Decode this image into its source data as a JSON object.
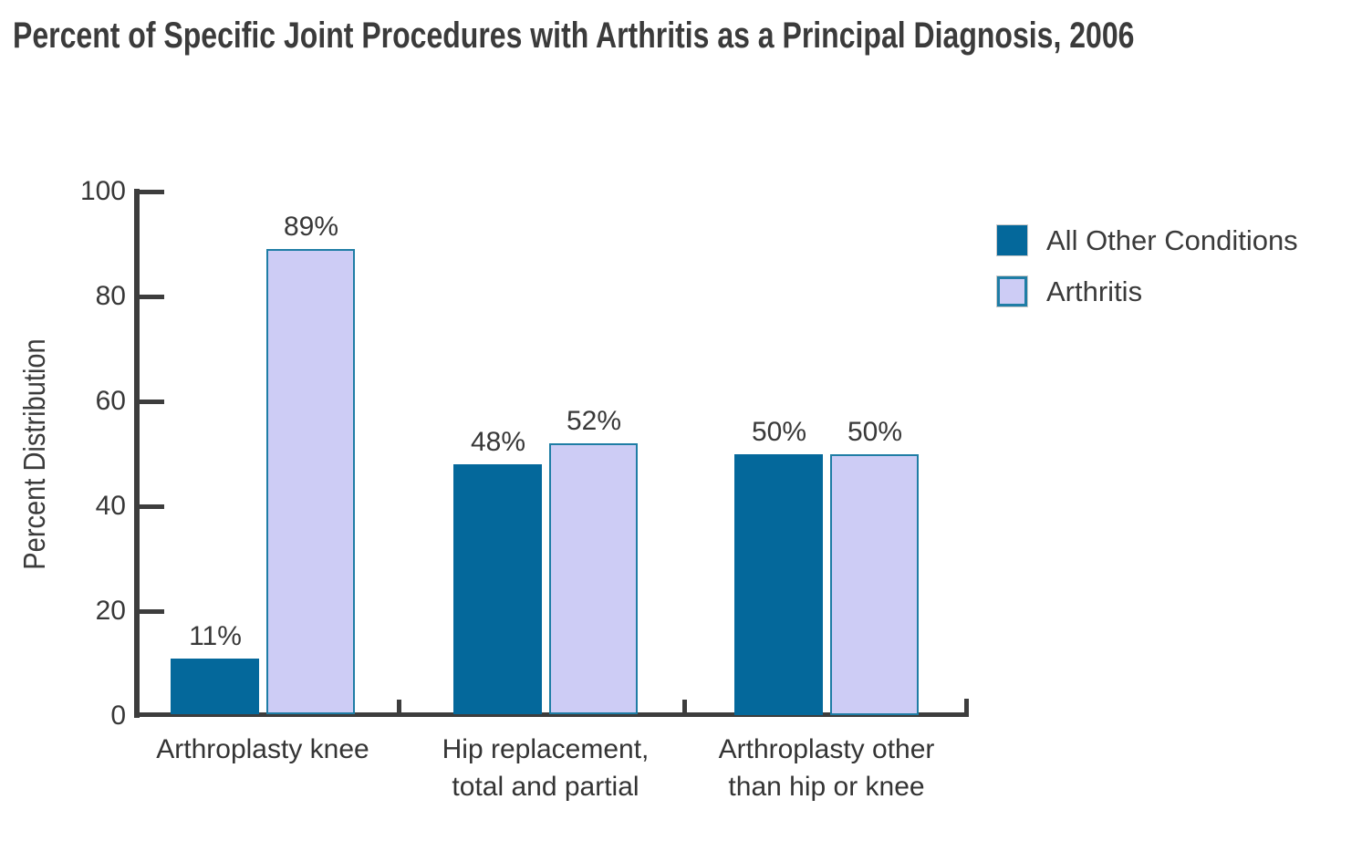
{
  "chart_data": {
    "type": "bar",
    "title": "Percent of Specific Joint Procedures with Arthritis as a Principal Diagnosis, 2006",
    "ylabel": "Percent Distribution",
    "xlabel": "",
    "ylim": [
      0,
      100
    ],
    "yticks": [
      0,
      20,
      40,
      60,
      80,
      100
    ],
    "grid": false,
    "legend_position": "upper-right",
    "data_label_suffix": "%",
    "categories": [
      "Arthroplasty knee",
      "Hip replacement, total and partial",
      "Arthroplasty other than hip or knee"
    ],
    "category_label_lines": [
      [
        "Arthroplasty knee"
      ],
      [
        "Hip replacement,",
        "total and partial"
      ],
      [
        "Arthroplasty other",
        "than hip or knee"
      ]
    ],
    "series": [
      {
        "name": "All Other Conditions",
        "color": "#04689b",
        "border_color": "#04689b",
        "values": [
          11,
          48,
          50
        ]
      },
      {
        "name": "Arthritis",
        "color": "#cdccf5",
        "border_color": "#1f7da5",
        "values": [
          89,
          52,
          50
        ]
      }
    ]
  },
  "colors": {
    "background": "#ffffff",
    "axis": "#3d3d3d",
    "text": "#383838",
    "title_text": "#3b3b3b",
    "series_dark": "#04689b",
    "series_light": "#cdccf5",
    "series_light_border": "#1f7da5",
    "legend_swatch_outline": "#c9c9c9"
  }
}
